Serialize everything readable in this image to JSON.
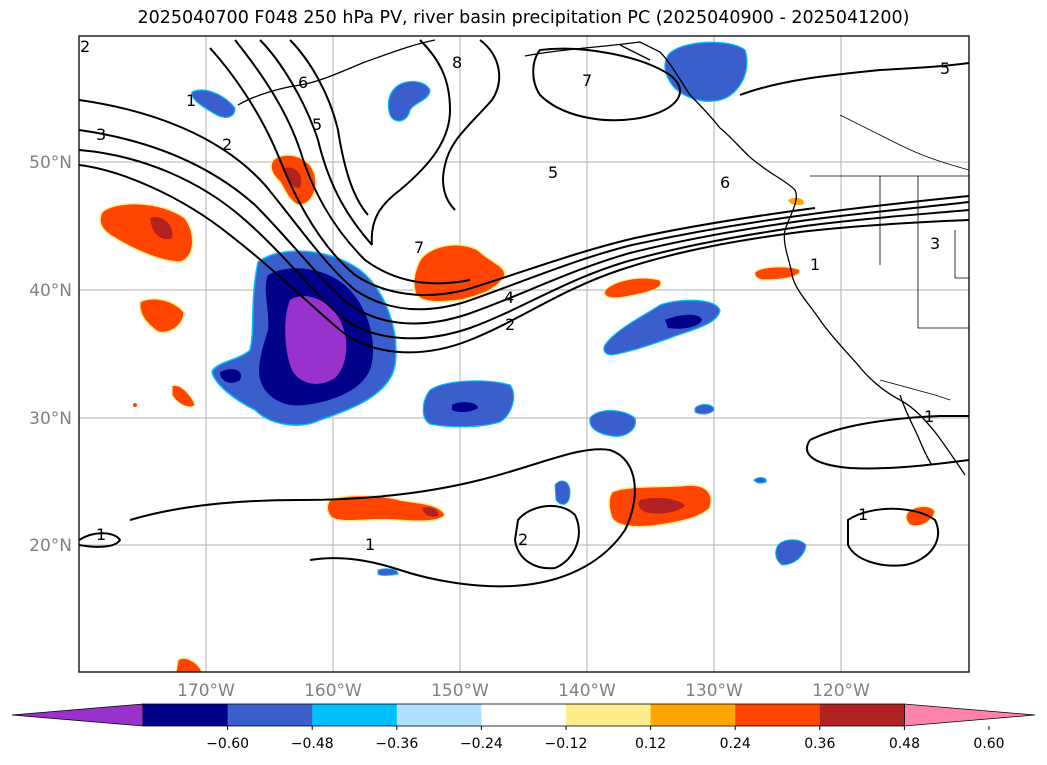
{
  "title": "2025040700 F048 250 hPa PV, river basin precipitation PC (2025040900 - 2025041200)",
  "latitude_labels": [
    "50°N",
    "40°N",
    "30°N",
    "20°N"
  ],
  "longitude_labels": [
    "170°W",
    "160°W",
    "150°W",
    "140°W",
    "130°W",
    "120°W"
  ],
  "colorbar": {
    "tick_labels": [
      "−0.60",
      "−0.48",
      "−0.36",
      "−0.24",
      "−0.12",
      "0.12",
      "0.24",
      "0.36",
      "0.48",
      "0.60"
    ],
    "colors": [
      "#9932cc",
      "#00008b",
      "#3a5fcd",
      "#00bfff",
      "#b0e2ff",
      "#ffffff",
      "#ffec8b",
      "#ffa500",
      "#ff4500",
      "#b22222",
      "#ff82ab"
    ]
  },
  "contour_labels": [
    "2",
    "1",
    "3",
    "2",
    "6",
    "5",
    "8",
    "7",
    "5",
    "5",
    "6",
    "7",
    "4",
    "2",
    "3",
    "1",
    "1",
    "2",
    "1",
    "1",
    "1"
  ],
  "legend_colors": {
    "neg_strong": "#9932cc",
    "neg_2": "#00008b",
    "neg_3": "#3a5fcd",
    "neg_4": "#00bfff",
    "neg_5": "#b0e2ff",
    "pos_1": "#ffec8b",
    "pos_2": "#ffa500",
    "pos_3": "#ff4500",
    "pos_4": "#b22222",
    "pos_5": "#ff82ab"
  }
}
